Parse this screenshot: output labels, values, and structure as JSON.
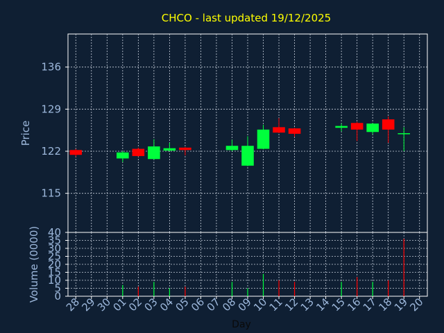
{
  "chart_data": [
    {
      "type": "candlestick",
      "title": "CHCO - last updated 19/12/2025",
      "ylabel": "Price",
      "ylim": [
        108.5,
        141.5
      ],
      "yticks": [
        115,
        122,
        129,
        136
      ],
      "grid": true,
      "colors": {
        "up": "#00ff3c",
        "down": "#ff0000",
        "grid": "#c8d0dc",
        "text": "#9db8dc",
        "title": "#ffff00",
        "background": "#0f1f33"
      },
      "candles": [
        {
          "day": "28",
          "open": 122.2,
          "high": 122.4,
          "low": 121.1,
          "close": 121.4
        },
        {
          "day": "01",
          "open": 120.8,
          "high": 122.0,
          "low": 120.2,
          "close": 121.8
        },
        {
          "day": "02",
          "open": 122.4,
          "high": 122.6,
          "low": 121.1,
          "close": 121.2
        },
        {
          "day": "03",
          "open": 120.7,
          "high": 124.0,
          "low": 120.6,
          "close": 122.8
        },
        {
          "day": "04",
          "open": 122.1,
          "high": 123.4,
          "low": 122.0,
          "close": 122.5
        },
        {
          "day": "05",
          "open": 122.6,
          "high": 122.7,
          "low": 121.3,
          "close": 122.2
        },
        {
          "day": "08",
          "open": 122.2,
          "high": 123.9,
          "low": 122.0,
          "close": 122.9
        },
        {
          "day": "09",
          "open": 119.6,
          "high": 124.5,
          "low": 119.5,
          "close": 122.9
        },
        {
          "day": "10",
          "open": 122.4,
          "high": 126.4,
          "low": 122.3,
          "close": 125.6
        },
        {
          "day": "11",
          "open": 126.0,
          "high": 127.5,
          "low": 125.0,
          "close": 125.1
        },
        {
          "day": "12",
          "open": 125.8,
          "high": 125.9,
          "low": 124.4,
          "close": 124.9
        },
        {
          "day": "15",
          "open": 125.9,
          "high": 126.6,
          "low": 125.3,
          "close": 126.2
        },
        {
          "day": "16",
          "open": 126.7,
          "high": 126.9,
          "low": 123.7,
          "close": 125.6
        },
        {
          "day": "17",
          "open": 125.2,
          "high": 126.7,
          "low": 124.8,
          "close": 126.6
        },
        {
          "day": "18",
          "open": 127.3,
          "high": 127.8,
          "low": 123.4,
          "close": 125.6
        },
        {
          "day": "19",
          "open": 125.0,
          "high": 126.0,
          "low": 122.0,
          "close": 125.0
        }
      ]
    },
    {
      "type": "bar",
      "ylabel": "Volume (0000)",
      "xlabel": "Day",
      "ylim": [
        0,
        40
      ],
      "yticks": [
        0,
        5,
        10,
        15,
        20,
        25,
        30,
        35,
        40
      ],
      "categories": [
        "28",
        "29",
        "30",
        "01",
        "02",
        "03",
        "04",
        "05",
        "06",
        "07",
        "08",
        "09",
        "10",
        "11",
        "12",
        "13",
        "14",
        "15",
        "16",
        "17",
        "18",
        "19",
        "20"
      ],
      "values": [
        0,
        0,
        0,
        7,
        6,
        9,
        5,
        6,
        0,
        0,
        9,
        5,
        14,
        10,
        9,
        0,
        0,
        9,
        12,
        9,
        10,
        36,
        0
      ],
      "colors": [
        "",
        "",
        "",
        "up",
        "down",
        "up",
        "up",
        "down",
        "",
        "",
        "up",
        "up",
        "up",
        "down",
        "down",
        "",
        "",
        "up",
        "down",
        "up",
        "down",
        "down",
        ""
      ]
    }
  ]
}
